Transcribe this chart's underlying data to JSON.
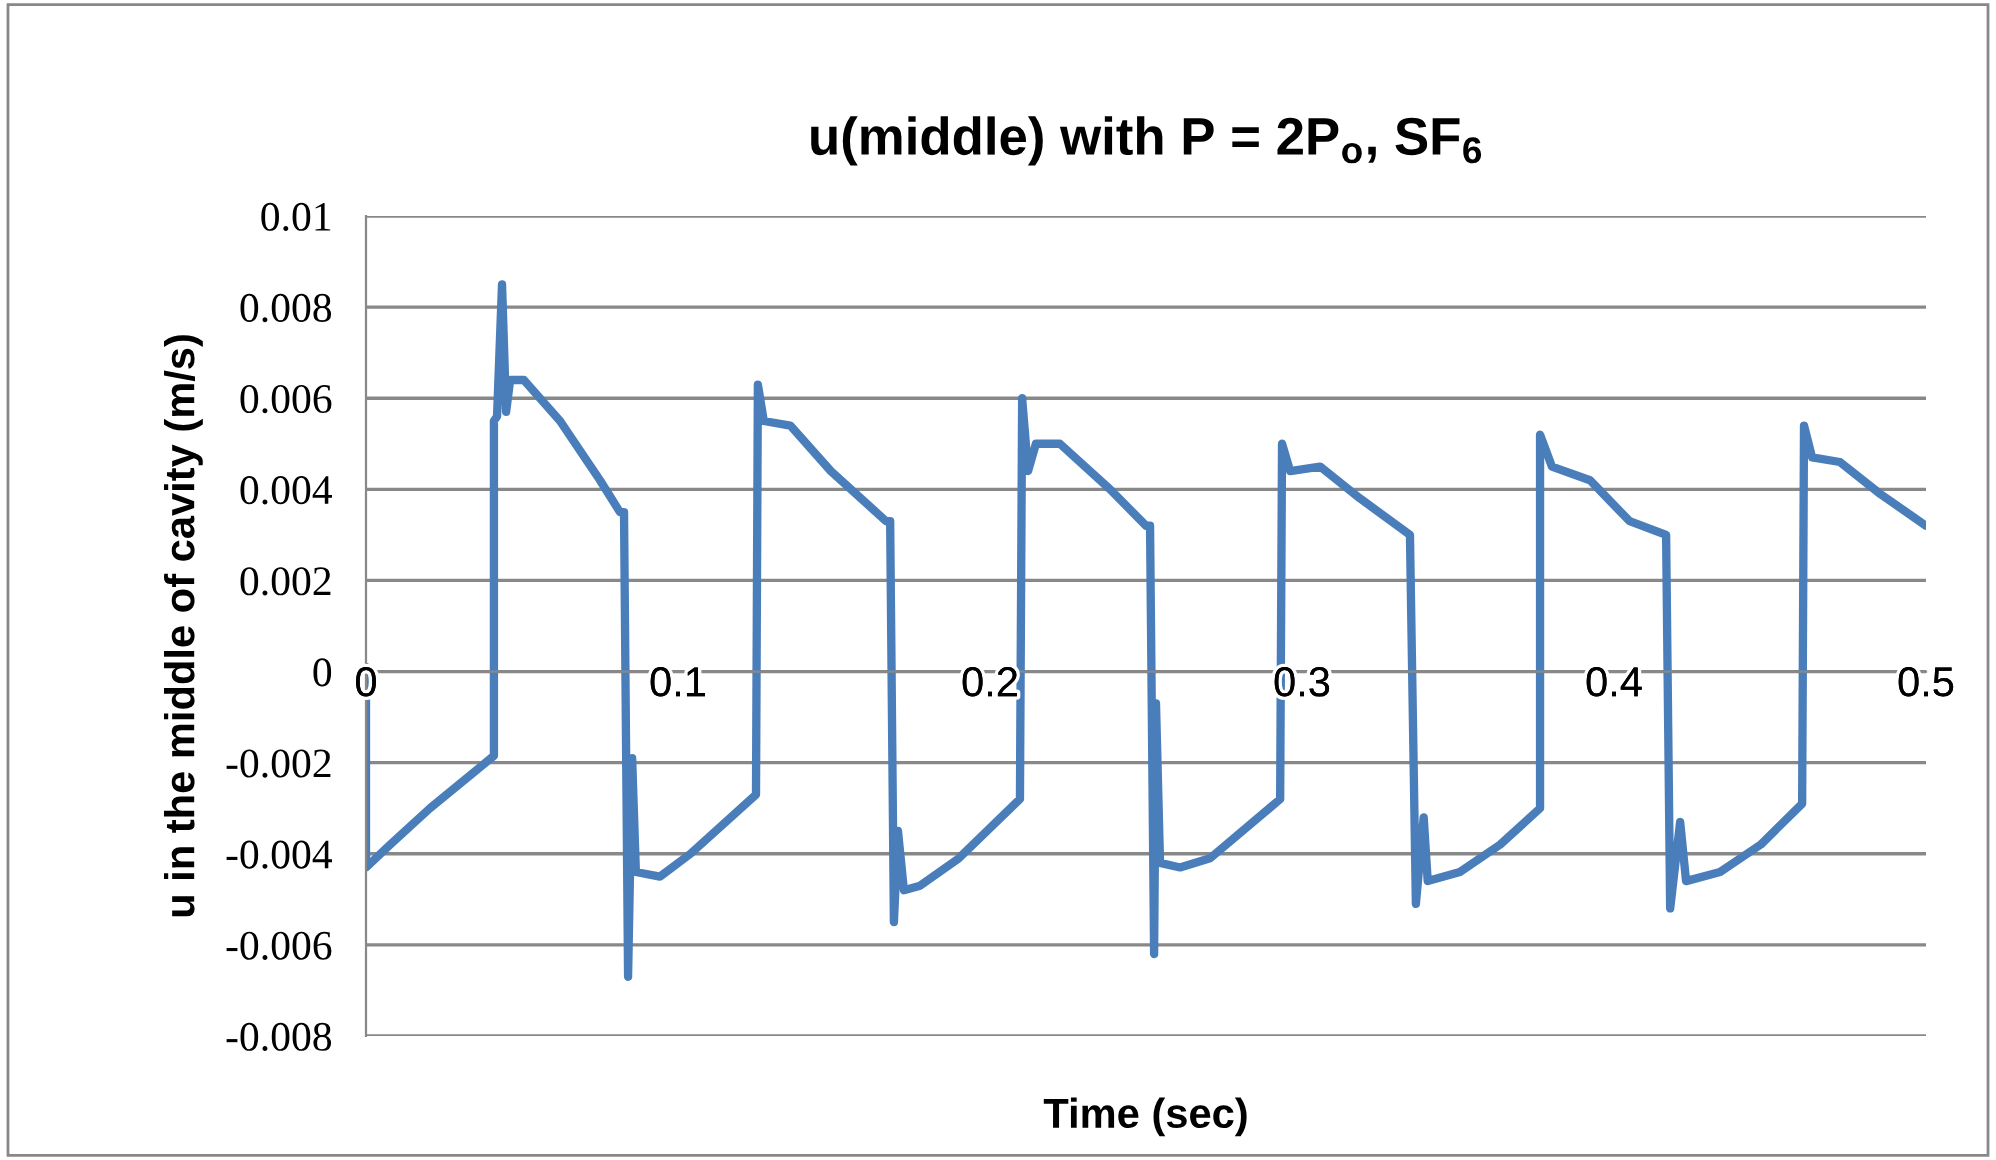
{
  "chart_data": {
    "type": "line",
    "title": "u(middle) with P = 2P$_{o}$, SF$_{6}$",
    "xlabel": "Time (sec)",
    "ylabel": "u in the middle of cavity (m/s)",
    "xlim": [
      0,
      0.5
    ],
    "xticks": [
      0,
      0.1,
      0.2,
      0.3,
      0.4,
      0.5
    ],
    "ylim": [
      -0.008,
      0.01
    ],
    "yticks": [
      -0.008,
      -0.006,
      -0.004,
      -0.002,
      0,
      0.002,
      0.004,
      0.006,
      0.008,
      0.01
    ],
    "grid": "y",
    "legend": false,
    "series": [
      {
        "color": "#4a7ebb",
        "x": [
          0,
          0,
          0.0077,
          0.0205,
          0.041,
          0.041,
          0.042,
          0.0436,
          0.0449,
          0.0462,
          0.0506,
          0.0622,
          0.075,
          0.0814,
          0.0827,
          0.084,
          0.0853,
          0.0865,
          0.0942,
          0.104,
          0.125,
          0.1256,
          0.1275,
          0.136,
          0.149,
          0.1667,
          0.168,
          0.1692,
          0.1705,
          0.1724,
          0.1776,
          0.19,
          0.2096,
          0.2103,
          0.2122,
          0.2147,
          0.2224,
          0.2385,
          0.25,
          0.2513,
          0.2526,
          0.2532,
          0.2545,
          0.2609,
          0.2705,
          0.293,
          0.2936,
          0.2962,
          0.3058,
          0.3186,
          0.3346,
          0.3365,
          0.339,
          0.3403,
          0.3506,
          0.3635,
          0.3763,
          0.3763,
          0.3801,
          0.3923,
          0.405,
          0.4167,
          0.418,
          0.4212,
          0.4231,
          0.434,
          0.447,
          0.4603,
          0.4609,
          0.4635,
          0.4724,
          0.4853,
          0.5
        ],
        "values": [
          0.0001,
          -0.0043,
          -0.0038,
          -0.003,
          -0.00185,
          0.0055,
          0.0056,
          0.0085,
          0.0057,
          0.0064,
          0.0064,
          0.0055,
          0.0042,
          0.0035,
          0.0035,
          -0.0067,
          -0.0019,
          -0.0044,
          -0.0045,
          -0.004,
          -0.0027,
          0.0063,
          0.0055,
          0.0054,
          0.0044,
          0.0033,
          0.0033,
          -0.0055,
          -0.0035,
          -0.0048,
          -0.0047,
          -0.0041,
          -0.0028,
          0.006,
          0.0044,
          0.005,
          0.005,
          0.004,
          0.0032,
          0.0032,
          -0.0062,
          -0.0007,
          -0.0042,
          -0.0043,
          -0.0041,
          -0.0028,
          0.005,
          0.0044,
          0.0045,
          0.0038,
          0.003,
          -0.0051,
          -0.0032,
          -0.0046,
          -0.0044,
          -0.0038,
          -0.003,
          0.0052,
          0.0045,
          0.0042,
          0.0033,
          0.003,
          -0.0052,
          -0.0033,
          -0.0046,
          -0.0044,
          -0.0038,
          -0.0029,
          0.0054,
          0.0047,
          0.0046,
          0.0039,
          0.0032
        ]
      }
    ]
  }
}
